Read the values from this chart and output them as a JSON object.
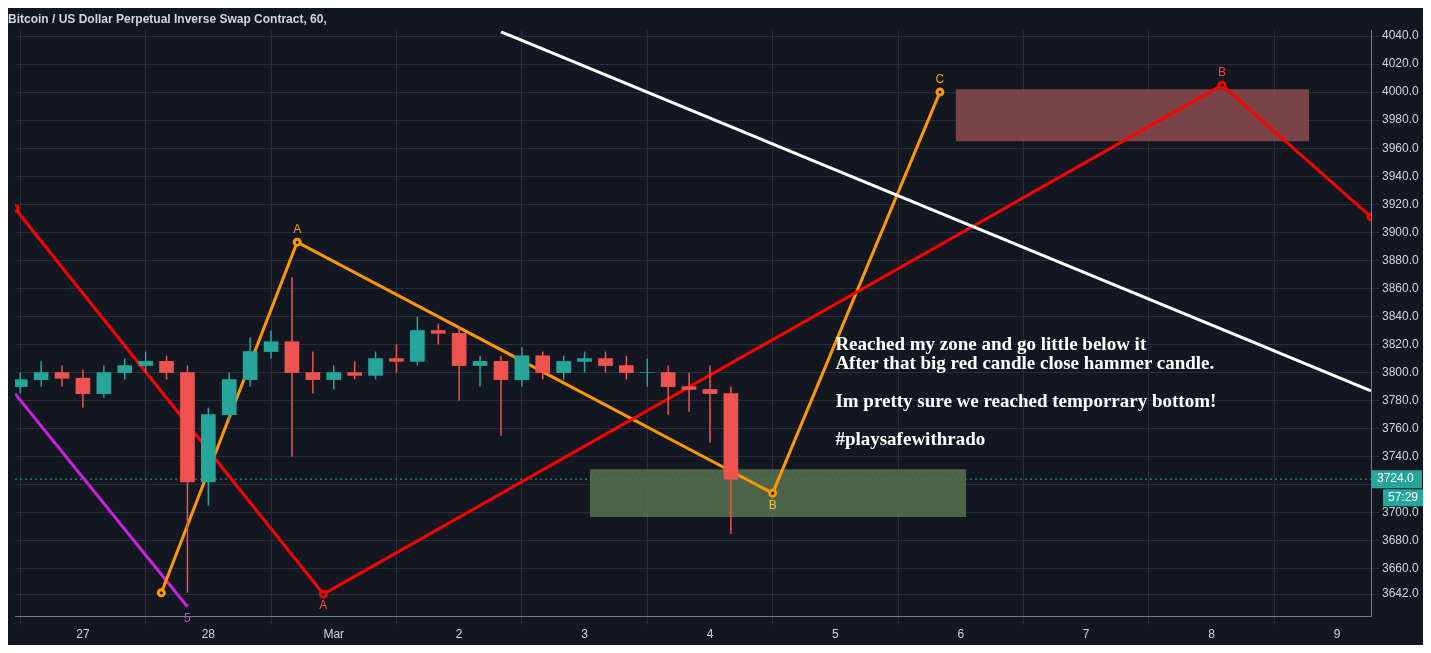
{
  "chart_data": {
    "type": "candlestick",
    "title": "Bitcoin / US Dollar Perpetual Inverse Swap Contract, 60,",
    "x": [
      "--02-26T12:00",
      "--02-26T16:00",
      "--02-26T20:00",
      "--02-27T00:00",
      "--02-27T04:00",
      "--02-27T08:00",
      "--02-27T12:00",
      "--02-27T16:00",
      "--02-27T20:00",
      "--02-28T00:00",
      "--02-28T04:00",
      "--02-28T08:00",
      "--02-28T12:00",
      "--02-28T16:00",
      "--02-28T20:00",
      "--03-01T00:00",
      "--03-01T04:00",
      "--03-01T08:00",
      "--03-01T12:00",
      "--03-01T16:00",
      "--03-01T20:00",
      "--03-02T00:00",
      "--03-02T04:00",
      "--03-02T08:00",
      "--03-02T12:00",
      "--03-02T16:00",
      "--03-02T20:00",
      "--03-03T00:00",
      "--03-03T04:00",
      "--03-03T08:00",
      "--03-03T12:00",
      "--03-03T16:00",
      "--03-03T20:00",
      "--03-04T00:00",
      "--03-04T04:00"
    ],
    "ohlc": [
      [
        3790,
        3800,
        3785,
        3795
      ],
      [
        3795,
        3808,
        3790,
        3800
      ],
      [
        3800,
        3805,
        3790,
        3796
      ],
      [
        3796,
        3802,
        3775,
        3785
      ],
      [
        3785,
        3805,
        3782,
        3800
      ],
      [
        3800,
        3810,
        3795,
        3805
      ],
      [
        3805,
        3815,
        3800,
        3808
      ],
      [
        3808,
        3812,
        3795,
        3800
      ],
      [
        3800,
        3805,
        3643,
        3722
      ],
      [
        3722,
        3775,
        3705,
        3770
      ],
      [
        3770,
        3800,
        3765,
        3795
      ],
      [
        3795,
        3825,
        3790,
        3815
      ],
      [
        3815,
        3830,
        3810,
        3822
      ],
      [
        3822,
        3868,
        3740,
        3800
      ],
      [
        3800,
        3815,
        3785,
        3795
      ],
      [
        3795,
        3805,
        3788,
        3800
      ],
      [
        3800,
        3808,
        3795,
        3798
      ],
      [
        3798,
        3815,
        3795,
        3810
      ],
      [
        3810,
        3820,
        3800,
        3808
      ],
      [
        3808,
        3840,
        3805,
        3830
      ],
      [
        3830,
        3835,
        3820,
        3828
      ],
      [
        3828,
        3832,
        3780,
        3805
      ],
      [
        3805,
        3812,
        3790,
        3808
      ],
      [
        3808,
        3812,
        3755,
        3795
      ],
      [
        3795,
        3818,
        3790,
        3812
      ],
      [
        3812,
        3815,
        3795,
        3800
      ],
      [
        3800,
        3812,
        3795,
        3808
      ],
      [
        3808,
        3815,
        3800,
        3810
      ],
      [
        3810,
        3815,
        3800,
        3805
      ],
      [
        3805,
        3812,
        3795,
        3800
      ],
      [
        3800,
        3810,
        3790,
        3800
      ],
      [
        3800,
        3805,
        3770,
        3790
      ],
      [
        3790,
        3800,
        3772,
        3788
      ],
      [
        3788,
        3805,
        3750,
        3785
      ],
      [
        3785,
        3790,
        3685,
        3724
      ]
    ],
    "series": [
      {
        "type": "line",
        "color": "#ffffff",
        "x": [
          "--03-02T08:00",
          "--03-09T06:30"
        ],
        "values": [
          4043,
          3787
        ]
      },
      {
        "type": "line",
        "color": "#ff0000",
        "marker": "circle",
        "x": [
          "--02-26T11:00",
          "--02-28T22:00",
          "--03-08T02:00",
          "--03-09T06:30"
        ],
        "values": [
          3917,
          3642,
          4005,
          3911
        ]
      },
      {
        "type": "line",
        "color": "#ff9800",
        "marker": "circle",
        "x": [
          "--02-27T15:00",
          "--02-28T17:00",
          "--03-04T12:00",
          "--03-05T20:00"
        ],
        "values": [
          3643,
          3893,
          3714,
          4000
        ]
      },
      {
        "type": "line",
        "color": "#cc22dd",
        "x": [
          "--02-26T11:00",
          "--02-27T20:00"
        ],
        "values": [
          3785,
          3633
        ]
      },
      {
        "type": "line",
        "color": "#8a4a4f",
        "x": [
          "--03-05T23:00",
          "--03-08T18:40"
        ],
        "values": [
          null,
          null
        ],
        "lower": [
          3965,
          3965
        ],
        "upper": [
          4002,
          4002
        ]
      },
      {
        "type": "line",
        "color": "#56704f",
        "x": [
          "--03-03T01:00",
          "--03-06T01:00"
        ],
        "values": [
          null,
          null
        ],
        "lower": [
          3697,
          3697
        ],
        "upper": [
          3731,
          3731
        ]
      }
    ],
    "xlim": [
      "--02-26T11:00",
      "--03-09T06:30"
    ],
    "xticks": [
      {
        "value": "--02-27",
        "label": "27"
      },
      {
        "value": "--02-28",
        "label": "28"
      },
      {
        "value": "--03-01",
        "label": "Mar"
      },
      {
        "value": "--03-02",
        "label": "2"
      },
      {
        "value": "--03-03",
        "label": "3"
      },
      {
        "value": "--03-04",
        "label": "4"
      },
      {
        "value": "--03-05",
        "label": "5"
      },
      {
        "value": "--03-06",
        "label": "6"
      },
      {
        "value": "--03-07",
        "label": "7"
      },
      {
        "value": "--03-08",
        "label": "8"
      },
      {
        "value": "--03-09",
        "label": "9"
      }
    ],
    "ylim": [
      3626,
      4044
    ],
    "yticks": [
      {
        "value": 3642,
        "label": "3642.0"
      },
      {
        "value": 3660,
        "label": "3660.0"
      },
      {
        "value": 3680,
        "label": "3680.0"
      },
      {
        "value": 3700,
        "label": "3700.0"
      },
      {
        "value": 3720,
        "label": null
      },
      {
        "value": 3740,
        "label": "3740.0"
      },
      {
        "value": 3760,
        "label": "3760.0"
      },
      {
        "value": 3780,
        "label": "3780.0"
      },
      {
        "value": 3800,
        "label": "3800.0"
      },
      {
        "value": 3820,
        "label": "3820.0"
      },
      {
        "value": 3840,
        "label": "3840.0"
      },
      {
        "value": 3860,
        "label": "3860.0"
      },
      {
        "value": 3880,
        "label": "3880.0"
      },
      {
        "value": 3900,
        "label": "3900.0"
      },
      {
        "value": 3920,
        "label": "3920.0"
      },
      {
        "value": 3940,
        "label": "3940.0"
      },
      {
        "value": 3960,
        "label": "3960.0"
      },
      {
        "value": 3980,
        "label": "3980.0"
      },
      {
        "value": 4000,
        "label": "4000.0"
      },
      {
        "value": 4020,
        "label": "4020.0"
      },
      {
        "value": 4040,
        "label": "4040.0"
      }
    ],
    "ref_lines": [
      {
        "axis": "y",
        "value": 3724,
        "label": "3724.0",
        "color": "#26a69a",
        "line_style": "dotted"
      }
    ],
    "grid": true,
    "annotations": [
      {
        "text": "A",
        "x": "--02-28T17:00",
        "y": 3893
      },
      {
        "text": "A",
        "x": "--02-28T22:00",
        "y": 3642
      },
      {
        "text": "5",
        "x": "--02-27T20:00",
        "y": 3633
      },
      {
        "text": "B",
        "x": "--03-04T12:00",
        "y": 3714
      },
      {
        "text": "C",
        "x": "--03-05T20:00",
        "y": 4000
      },
      {
        "text": "B",
        "x": "--03-08T02:00",
        "y": 4005
      },
      "Reached my zone and go little below it",
      "After that big red candle close hammer candle.",
      "Im pretty sure we reached temporrary bottom!",
      "#playsafewithrado",
      "57:29"
    ]
  }
}
